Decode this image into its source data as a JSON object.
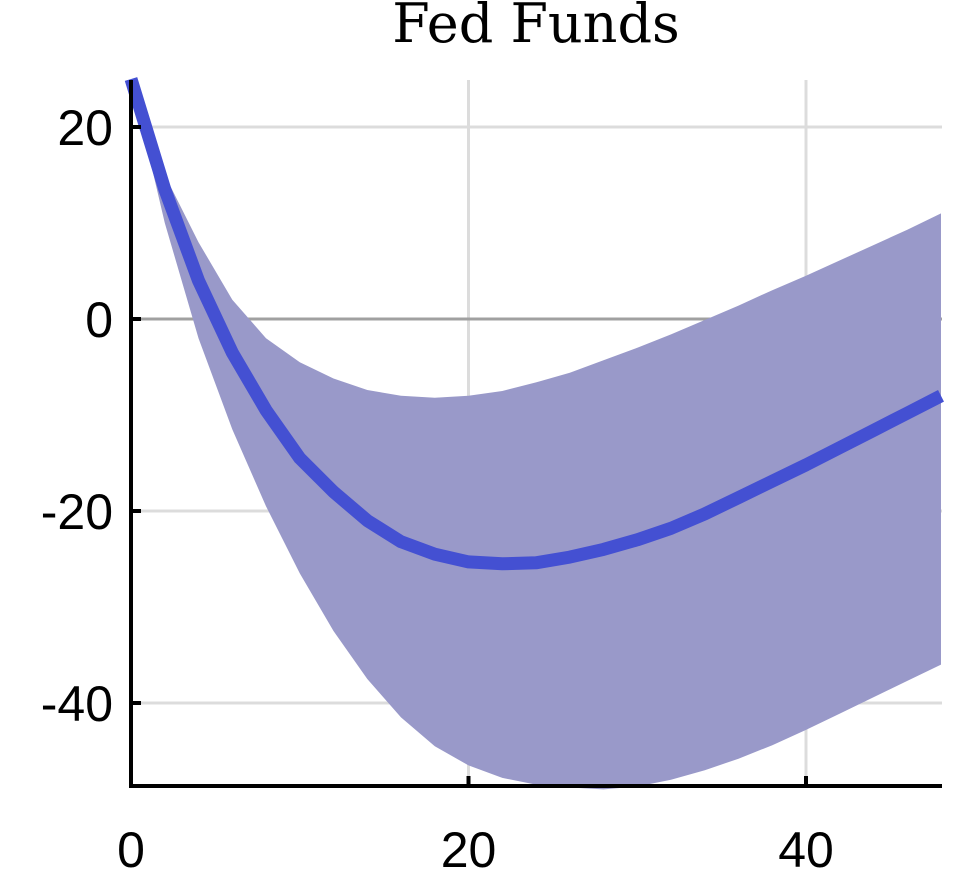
{
  "chart_data": {
    "type": "line",
    "title": "Fed Funds",
    "xlabel": "",
    "ylabel": "",
    "xlim": [
      0,
      48
    ],
    "ylim": [
      -49,
      25
    ],
    "x_ticks": [
      "0",
      "20",
      "40"
    ],
    "y_ticks": [
      "20",
      "0",
      "-20",
      "-40"
    ],
    "grid": true,
    "zero_line": true,
    "colors": {
      "line": "#4450d2",
      "band": "#9999c9",
      "grid": "#dcdcdc",
      "zero": "#a0a0a0"
    },
    "series": [
      {
        "x": [
          0,
          2,
          4,
          6,
          8,
          10,
          12,
          14,
          16,
          18,
          20,
          22,
          24,
          26,
          28,
          30,
          32,
          34,
          36,
          38,
          40,
          42,
          44,
          46,
          48
        ],
        "values": [
          25,
          13.5,
          4,
          -3.5,
          -9.5,
          -14.5,
          -18,
          -21,
          -23.2,
          -24.5,
          -25.3,
          -25.5,
          -25.4,
          -24.8,
          -24,
          -23,
          -21.8,
          -20.3,
          -18.6,
          -16.9,
          -15.2,
          -13.4,
          -11.6,
          -9.8,
          -8
        ]
      }
    ],
    "band": {
      "x": [
        0,
        2,
        4,
        6,
        8,
        10,
        12,
        14,
        16,
        18,
        20,
        22,
        24,
        26,
        28,
        30,
        32,
        34,
        36,
        38,
        40,
        42,
        44,
        46,
        48
      ],
      "upper": [
        25,
        15,
        8,
        2,
        -2,
        -4.5,
        -6.2,
        -7.4,
        -8,
        -8.2,
        -8,
        -7.5,
        -6.6,
        -5.6,
        -4.3,
        -3,
        -1.6,
        -0.1,
        1.4,
        3,
        4.5,
        6.1,
        7.7,
        9.3,
        11
      ],
      "lower": [
        25,
        10,
        -2,
        -11.5,
        -19.5,
        -26.5,
        -32.5,
        -37.5,
        -41.5,
        -44.5,
        -46.5,
        -47.8,
        -48.5,
        -48.8,
        -49,
        -48.7,
        -48,
        -47,
        -45.8,
        -44.4,
        -42.8,
        -41.1,
        -39.4,
        -37.7,
        -36
      ]
    }
  }
}
